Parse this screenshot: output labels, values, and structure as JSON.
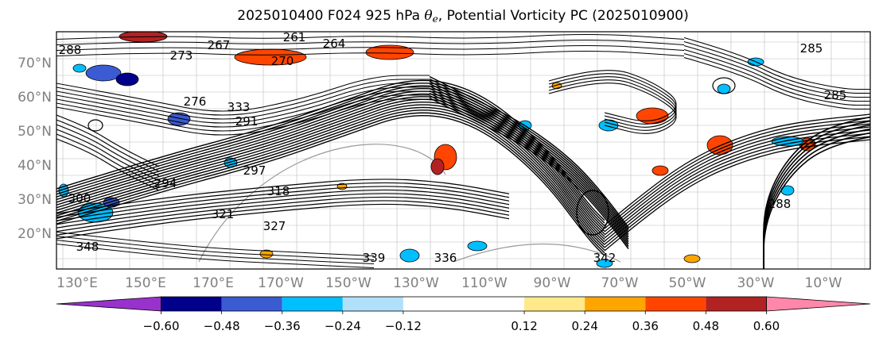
{
  "title": {
    "prefix": "2025010400 F024 925 hPa ",
    "theta_symbol": "θ",
    "theta_sub": "e",
    "suffix": ", Potential Vorticity PC (2025010900)"
  },
  "map": {
    "lat_labels": [
      "70°N",
      "60°N",
      "50°N",
      "40°N",
      "30°N",
      "20°N"
    ],
    "lat_values": [
      70,
      60,
      50,
      40,
      30,
      20
    ],
    "lon_labels": [
      "130°E",
      "150°E",
      "170°E",
      "170°W",
      "150°W",
      "130°W",
      "110°W",
      "90°W",
      "70°W",
      "50°W",
      "30°W",
      "10°W"
    ],
    "contour_labels": [
      "261",
      "264",
      "267",
      "270",
      "273",
      "276",
      "285",
      "288",
      "291",
      "294",
      "297",
      "300",
      "318",
      "321",
      "327",
      "333",
      "336",
      "339",
      "342",
      "348"
    ],
    "frame_color": "#000000",
    "grid_color": "#bdbdbd",
    "label_color": "#808080"
  },
  "colorbar": {
    "ticks": [
      "−0.60",
      "−0.48",
      "−0.36",
      "−0.24",
      "−0.12",
      "0.12",
      "0.24",
      "0.36",
      "0.48",
      "0.60"
    ],
    "tick_values": [
      -0.6,
      -0.48,
      -0.36,
      -0.24,
      -0.12,
      0.12,
      0.24,
      0.36,
      0.48,
      0.6
    ],
    "colors": [
      "#9932cc",
      "#00008b",
      "#3a5bd1",
      "#00bfff",
      "#b0e0fa",
      "#ffffff",
      "#ffe98a",
      "#ffa500",
      "#ff4500",
      "#b22222",
      "#ff88aa"
    ]
  }
}
